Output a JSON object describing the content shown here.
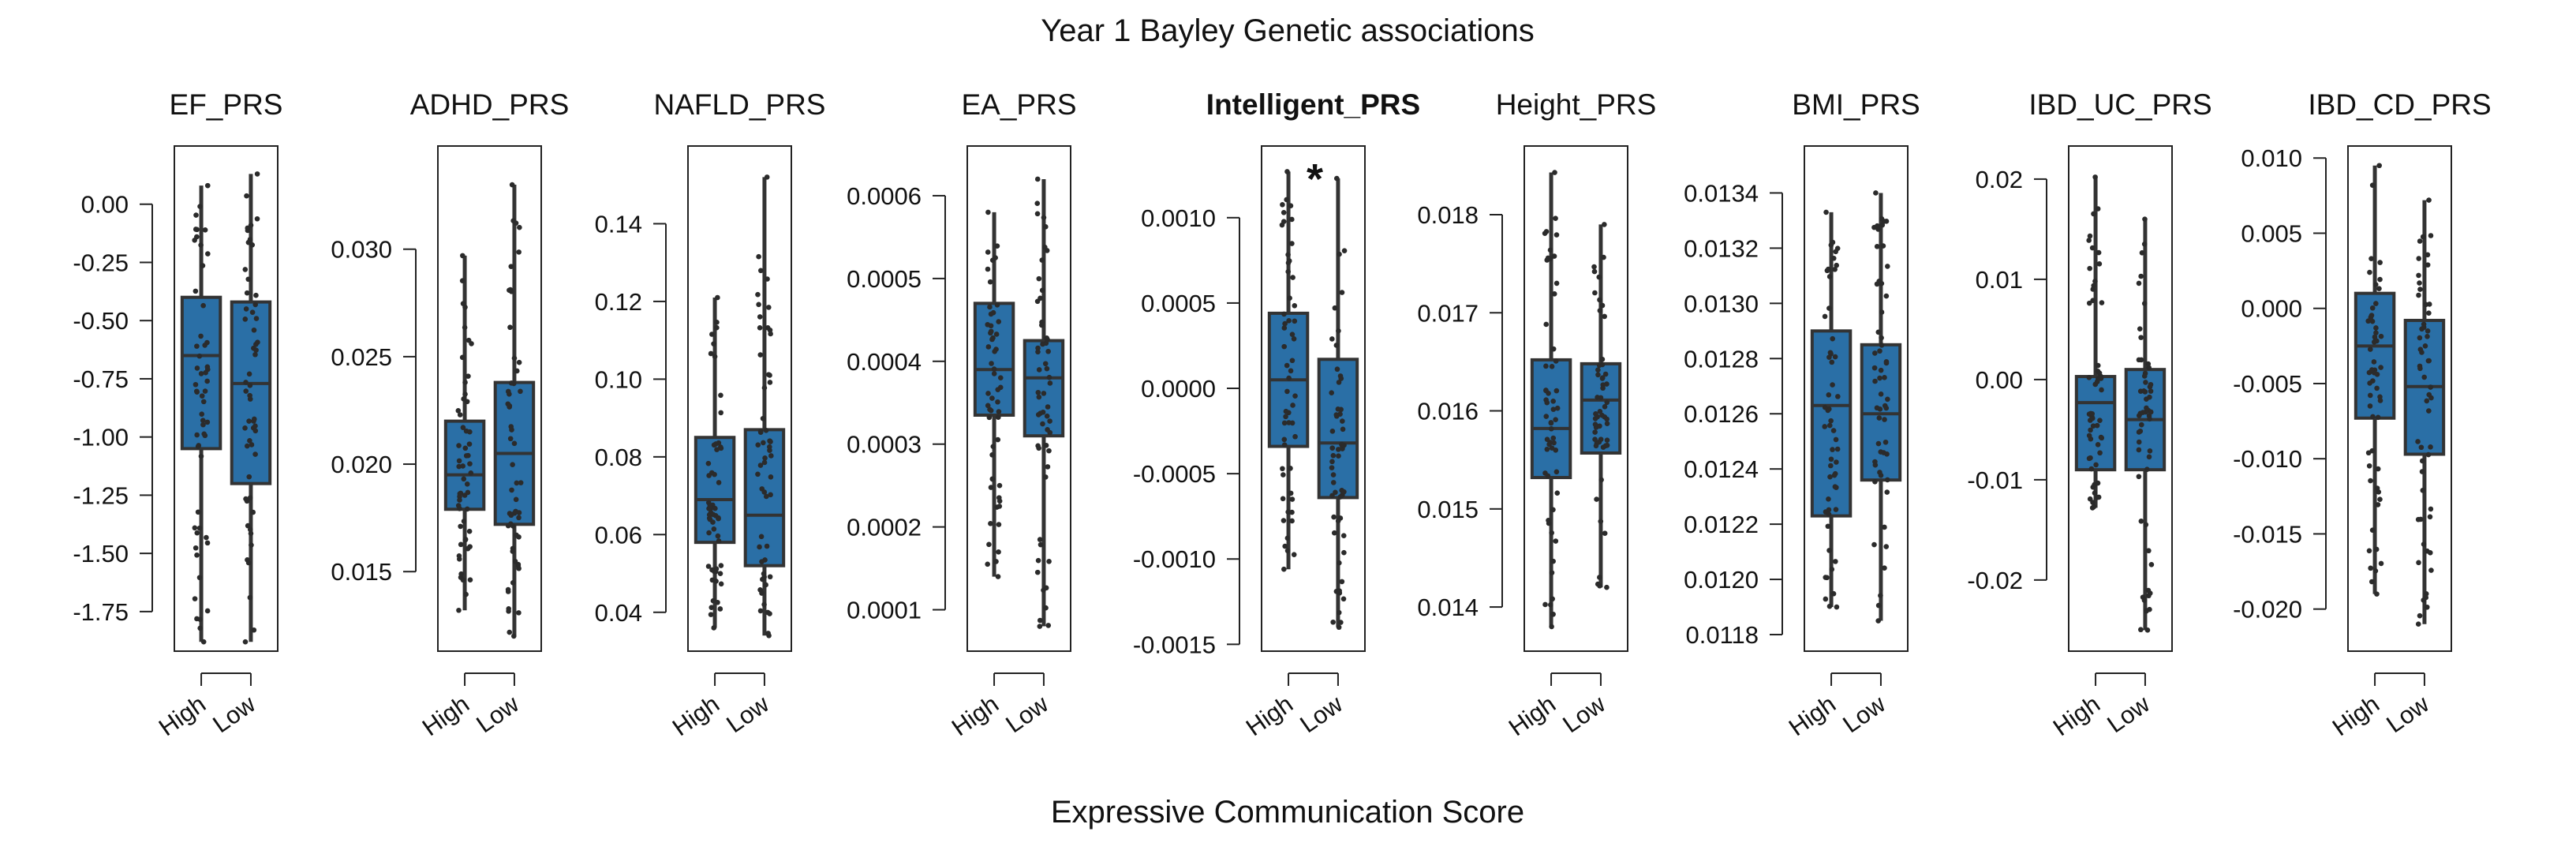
{
  "figure": {
    "title": "Year 1 Bayley Genetic associations",
    "xlabel": "Expressive Communication Score",
    "box_color": "#2a6fa6",
    "point_color": "#2b2b2b",
    "line_color": "#333333"
  },
  "chart_data": [
    {
      "type": "box",
      "title": "EF_PRS",
      "title_bold": false,
      "significance": "",
      "categories": [
        "High",
        "Low"
      ],
      "yticks": [
        "0.00",
        "-0.25",
        "-0.50",
        "-0.75",
        "-1.00",
        "-1.25",
        "-1.50",
        "-1.75"
      ],
      "ylim": [
        -1.92,
        0.25
      ],
      "boxes": [
        {
          "name": "High",
          "min": -1.88,
          "q1": -1.05,
          "median": -0.65,
          "q3": -0.4,
          "max": 0.08
        },
        {
          "name": "Low",
          "min": -1.88,
          "q1": -1.2,
          "median": -0.77,
          "q3": -0.42,
          "max": 0.13
        }
      ],
      "grid": false
    },
    {
      "type": "box",
      "title": "ADHD_PRS",
      "title_bold": false,
      "significance": "",
      "categories": [
        "High",
        "Low"
      ],
      "yticks": [
        "0.030",
        "0.025",
        "0.020",
        "0.015"
      ],
      "ylim": [
        0.0113,
        0.0348
      ],
      "boxes": [
        {
          "name": "High",
          "min": 0.0132,
          "q1": 0.0179,
          "median": 0.0195,
          "q3": 0.022,
          "max": 0.0297
        },
        {
          "name": "Low",
          "min": 0.012,
          "q1": 0.0172,
          "median": 0.0205,
          "q3": 0.0238,
          "max": 0.033
        }
      ],
      "grid": false
    },
    {
      "type": "box",
      "title": "NAFLD_PRS",
      "title_bold": false,
      "significance": "",
      "categories": [
        "High",
        "Low"
      ],
      "yticks": [
        "0.14",
        "0.12",
        "0.10",
        "0.08",
        "0.06",
        "0.04"
      ],
      "ylim": [
        0.03,
        0.16
      ],
      "boxes": [
        {
          "name": "High",
          "min": 0.036,
          "q1": 0.058,
          "median": 0.069,
          "q3": 0.085,
          "max": 0.121
        },
        {
          "name": "Low",
          "min": 0.034,
          "q1": 0.052,
          "median": 0.065,
          "q3": 0.087,
          "max": 0.152
        }
      ],
      "grid": false
    },
    {
      "type": "box",
      "title": "EA_PRS",
      "title_bold": false,
      "significance": "",
      "categories": [
        "High",
        "Low"
      ],
      "yticks": [
        "0.0006",
        "0.0005",
        "0.0004",
        "0.0003",
        "0.0002",
        "0.0001"
      ],
      "ylim": [
        5e-05,
        0.00066
      ],
      "boxes": [
        {
          "name": "High",
          "min": 0.00014,
          "q1": 0.000335,
          "median": 0.00039,
          "q3": 0.00047,
          "max": 0.00058
        },
        {
          "name": "Low",
          "min": 8e-05,
          "q1": 0.00031,
          "median": 0.00038,
          "q3": 0.000425,
          "max": 0.00062
        }
      ],
      "grid": false
    },
    {
      "type": "box",
      "title": "Intelligent_PRS",
      "title_bold": true,
      "significance": "*",
      "categories": [
        "High",
        "Low"
      ],
      "yticks": [
        "0.0010",
        "0.0005",
        "0.0000",
        "-0.0005",
        "-0.0010",
        "-0.0015"
      ],
      "ylim": [
        -0.00154,
        0.00142
      ],
      "boxes": [
        {
          "name": "High",
          "min": -0.00106,
          "q1": -0.00034,
          "median": 5e-05,
          "q3": 0.00044,
          "max": 0.00127
        },
        {
          "name": "Low",
          "min": -0.0014,
          "q1": -0.00064,
          "median": -0.00032,
          "q3": 0.00017,
          "max": 0.00123
        }
      ],
      "grid": false
    },
    {
      "type": "box",
      "title": "Height_PRS",
      "title_bold": false,
      "significance": "",
      "categories": [
        "High",
        "Low"
      ],
      "yticks": [
        "0.018",
        "0.017",
        "0.016",
        "0.015",
        "0.014"
      ],
      "ylim": [
        0.01355,
        0.0187
      ],
      "boxes": [
        {
          "name": "High",
          "min": 0.0138,
          "q1": 0.01532,
          "median": 0.01582,
          "q3": 0.01652,
          "max": 0.01843
        },
        {
          "name": "Low",
          "min": 0.0142,
          "q1": 0.01557,
          "median": 0.01611,
          "q3": 0.01648,
          "max": 0.0179
        }
      ],
      "grid": false
    },
    {
      "type": "box",
      "title": "BMI_PRS",
      "title_bold": false,
      "significance": "",
      "categories": [
        "High",
        "Low"
      ],
      "yticks": [
        "0.0134",
        "0.0132",
        "0.0130",
        "0.0128",
        "0.0126",
        "0.0124",
        "0.0122",
        "0.0120",
        "0.0118"
      ],
      "ylim": [
        0.01174,
        0.01357
      ],
      "boxes": [
        {
          "name": "High",
          "min": 0.0119,
          "q1": 0.01223,
          "median": 0.01263,
          "q3": 0.0129,
          "max": 0.01333
        },
        {
          "name": "Low",
          "min": 0.01185,
          "q1": 0.01236,
          "median": 0.0126,
          "q3": 0.01285,
          "max": 0.0134
        }
      ],
      "grid": false
    },
    {
      "type": "box",
      "title": "IBD_UC_PRS",
      "title_bold": false,
      "significance": "",
      "categories": [
        "High",
        "Low"
      ],
      "yticks": [
        "0.02",
        "0.01",
        "0.00",
        "-0.01",
        "-0.02"
      ],
      "ylim": [
        -0.0271,
        0.0233
      ],
      "boxes": [
        {
          "name": "High",
          "min": -0.0128,
          "q1": -0.009,
          "median": -0.0023,
          "q3": 0.0003,
          "max": 0.0202
        },
        {
          "name": "Low",
          "min": -0.025,
          "q1": -0.009,
          "median": -0.004,
          "q3": 0.001,
          "max": 0.016
        }
      ],
      "grid": false
    },
    {
      "type": "box",
      "title": "IBD_CD_PRS",
      "title_bold": false,
      "significance": "",
      "categories": [
        "High",
        "Low"
      ],
      "yticks": [
        "0.010",
        "0.005",
        "0.000",
        "-0.005",
        "-0.010",
        "-0.015",
        "-0.020"
      ],
      "ylim": [
        -0.0228,
        0.0108
      ],
      "boxes": [
        {
          "name": "High",
          "min": -0.019,
          "q1": -0.0073,
          "median": -0.0025,
          "q3": 0.001,
          "max": 0.0095
        },
        {
          "name": "Low",
          "min": -0.021,
          "q1": -0.0097,
          "median": -0.0052,
          "q3": -0.0008,
          "max": 0.0072
        }
      ],
      "grid": false
    }
  ]
}
